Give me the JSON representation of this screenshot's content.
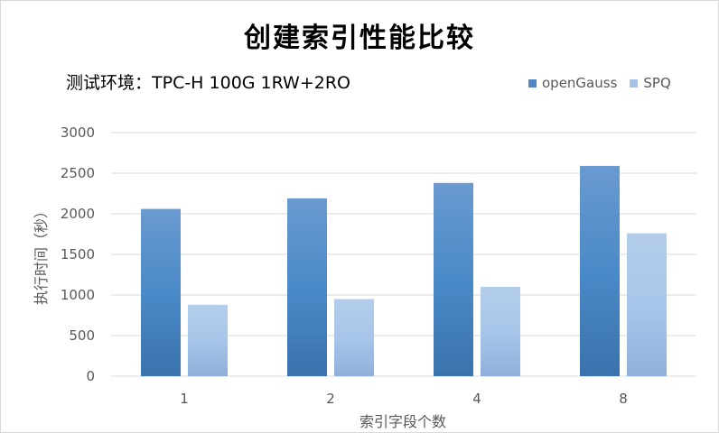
{
  "chart_data": {
    "type": "bar",
    "title": "创建索引性能比较",
    "subtitle": "测试环境：TPC-H 100G 1RW+2RO",
    "xlabel": "索引字段个数",
    "ylabel": "执行时间（秒）",
    "categories": [
      "1",
      "2",
      "4",
      "8"
    ],
    "series": [
      {
        "name": "openGauss",
        "values": [
          2060,
          2190,
          2380,
          2590
        ],
        "color": "#4f87c2"
      },
      {
        "name": "SPQ",
        "values": [
          880,
          950,
          1100,
          1760
        ],
        "color": "#a3c1e6"
      }
    ],
    "ylim": [
      0,
      3000
    ],
    "yticks": [
      0,
      500,
      1000,
      1500,
      2000,
      2500,
      3000
    ],
    "grid": true,
    "legend_position": "top-right"
  }
}
